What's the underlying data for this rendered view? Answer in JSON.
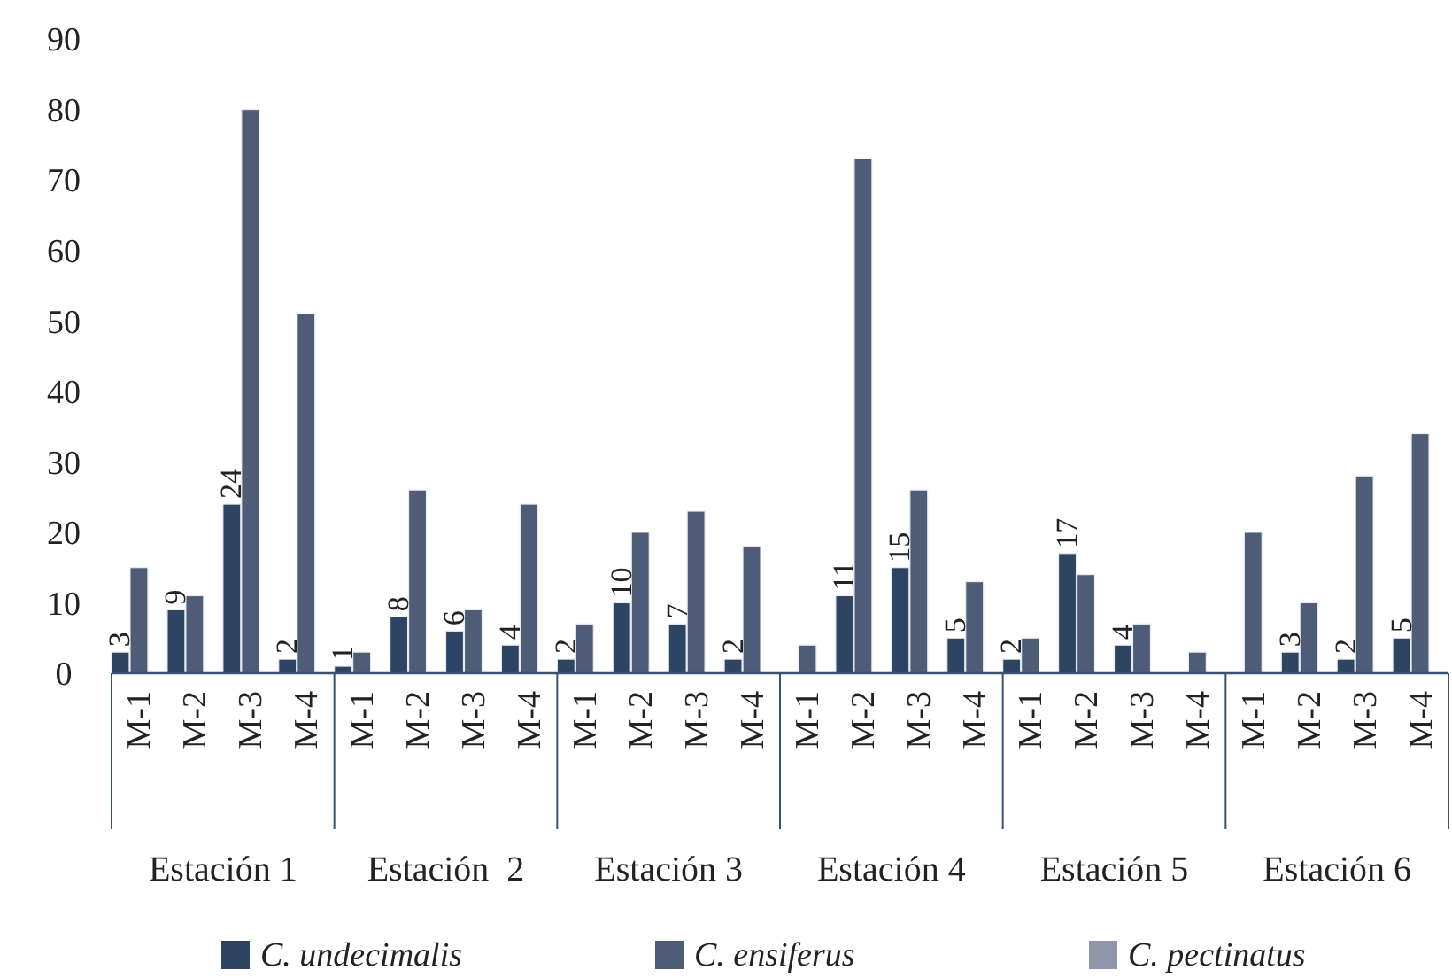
{
  "chart_data": {
    "type": "bar",
    "categories": [
      "M-1",
      "M-2",
      "M-3",
      "M-4",
      "M-1",
      "M-2",
      "M-3",
      "M-4",
      "M-1",
      "M-2",
      "M-3",
      "M-4",
      "M-1",
      "M-2",
      "M-3",
      "M-4",
      "M-1",
      "M-2",
      "M-3",
      "M-4",
      "M-1",
      "M-2",
      "M-3",
      "M-4"
    ],
    "series": [
      {
        "name": "C. undecimalis",
        "color": "#2e4463",
        "values": [
          3,
          9,
          24,
          2,
          1,
          8,
          6,
          4,
          2,
          10,
          7,
          2,
          0,
          11,
          15,
          5,
          2,
          17,
          4,
          0,
          0,
          3,
          2,
          5
        ],
        "value_labels": [
          "3",
          "9",
          "24",
          "2",
          "1",
          "8",
          "6",
          "4",
          "2",
          "10",
          "7",
          "2",
          null,
          "11",
          "15",
          "5",
          "2",
          "17",
          "4",
          null,
          null,
          "3",
          "2",
          "5"
        ]
      },
      {
        "name": "C. ensiferus",
        "color": "#4e5c78",
        "values": [
          15,
          11,
          80,
          51,
          3,
          26,
          9,
          24,
          7,
          20,
          23,
          18,
          4,
          73,
          26,
          13,
          5,
          14,
          7,
          3,
          20,
          10,
          28,
          34
        ]
      },
      {
        "name": "C. pectinatus",
        "color": "#9095aa",
        "values": [
          0,
          0,
          0,
          0,
          0,
          0,
          0,
          0,
          0,
          0,
          0,
          0,
          0,
          0,
          0,
          0,
          0,
          0,
          0,
          0,
          0,
          0,
          0,
          0
        ]
      }
    ],
    "annotations": [
      "Estación 1",
      "Estación  2",
      "Estación 3",
      "Estación 4",
      "Estación 5",
      "Estación 6"
    ],
    "ylim": [
      0,
      90
    ],
    "yticks": [
      0,
      10,
      20,
      30,
      40,
      50,
      60,
      70,
      80,
      90
    ],
    "grid": false,
    "legend": "bottom"
  }
}
